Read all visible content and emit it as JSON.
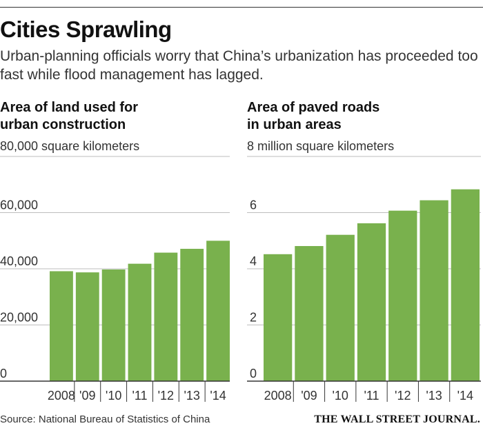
{
  "headline": "Cities Sprawling",
  "subhead": "Urban-planning officials worry that China’s urbanization has proceeded too fast while flood management has lagged.",
  "source": "Source: National Bureau of Statistics of China",
  "logo": "THE WALL STREET JOURNAL.",
  "colors": {
    "bar": "#79b14d",
    "grid": "#bdbdbd",
    "axis": "#333333"
  },
  "chart_data": [
    {
      "type": "bar",
      "title": "Area of land used for\nurban construction",
      "unit_label": "80,000 square kilometers",
      "categories": [
        "2008",
        "'09",
        "'10",
        "'11",
        "'12",
        "'13",
        "'14"
      ],
      "values": [
        39140,
        38727,
        39758,
        41805,
        45751,
        47109,
        49983
      ],
      "ylim": [
        0,
        80000
      ],
      "yticks": [
        "0",
        "20,000",
        "40,000",
        "60,000"
      ],
      "ytick_values": [
        0,
        20000,
        40000,
        60000
      ],
      "grid": true
    },
    {
      "type": "bar",
      "title": "Area of paved roads\nin urban areas",
      "unit_label": "8 million square kilometers",
      "categories": [
        "2008",
        "'09",
        "'10",
        "'11",
        "'12",
        "'13",
        "'14"
      ],
      "values": [
        4.52,
        4.81,
        5.21,
        5.62,
        6.07,
        6.44,
        6.83
      ],
      "ylim": [
        0,
        8
      ],
      "yticks": [
        "0",
        "2",
        "4",
        "6"
      ],
      "ytick_values": [
        0,
        2,
        4,
        6
      ],
      "grid": true
    }
  ]
}
